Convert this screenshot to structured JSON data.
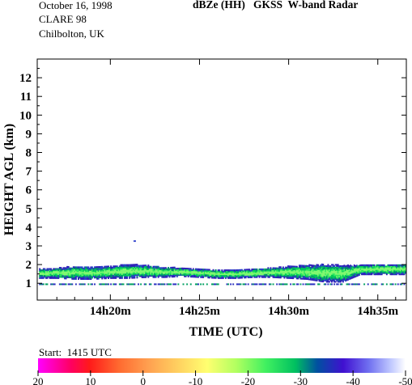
{
  "header": {
    "date": "October 16, 1998",
    "campaign": "CLARE 98",
    "location": "Chilbolton, UK",
    "title": "dBZe (HH)   GKSS  W-band Radar"
  },
  "colorbar": {
    "start_label": "Start:  1415 UTC",
    "ticks": [
      "20",
      "10",
      "0",
      "-10",
      "-20",
      "-30",
      "-40",
      "-50"
    ],
    "range": [
      20,
      -50
    ],
    "colors": [
      "#ff00ff",
      "#ff0040",
      "#ff7a2a",
      "#ffe060",
      "#80ff60",
      "#00e030",
      "#4020c0",
      "#ffffff"
    ]
  },
  "chart_data": {
    "type": "heatmap",
    "title": "dBZe (HH)   GKSS  W-band Radar",
    "xlabel": "TIME (UTC)",
    "ylabel": "HEIGHT AGL (km)",
    "x_range_minutes": [
      15.9,
      36.6
    ],
    "x_ticks": [
      {
        "value": 20,
        "label": "14h20m"
      },
      {
        "value": 25,
        "label": "14h25m"
      },
      {
        "value": 30,
        "label": "14h30m"
      },
      {
        "value": 35,
        "label": "14h35m"
      }
    ],
    "ylim": [
      0.1,
      13.0
    ],
    "y_ticks": [
      1,
      2,
      3,
      4,
      5,
      6,
      7,
      8,
      9,
      10,
      11,
      12
    ],
    "color_scale_dbz": [
      20,
      -50
    ],
    "cloud_layer": {
      "description_values": "Reflectivity band between about 1 and 2 km height",
      "base_km": [
        [
          16.0,
          1.25
        ],
        [
          17.0,
          1.25
        ],
        [
          18.0,
          1.2
        ],
        [
          19.0,
          1.2
        ],
        [
          20.0,
          1.25
        ],
        [
          21.0,
          1.25
        ],
        [
          22.0,
          1.3
        ],
        [
          23.0,
          1.3
        ],
        [
          24.0,
          1.35
        ],
        [
          25.0,
          1.3
        ],
        [
          26.0,
          1.25
        ],
        [
          27.0,
          1.25
        ],
        [
          28.0,
          1.3
        ],
        [
          29.0,
          1.3
        ],
        [
          30.0,
          1.25
        ],
        [
          31.0,
          1.2
        ],
        [
          32.0,
          1.05
        ],
        [
          33.0,
          1.05
        ],
        [
          34.0,
          1.45
        ],
        [
          35.0,
          1.45
        ],
        [
          36.0,
          1.45
        ],
        [
          36.5,
          1.45
        ]
      ],
      "top_km": [
        [
          16.0,
          1.75
        ],
        [
          17.0,
          1.8
        ],
        [
          18.0,
          1.9
        ],
        [
          19.0,
          1.85
        ],
        [
          20.0,
          1.9
        ],
        [
          21.0,
          2.0
        ],
        [
          22.0,
          1.95
        ],
        [
          23.0,
          1.85
        ],
        [
          24.0,
          1.8
        ],
        [
          25.0,
          1.75
        ],
        [
          26.0,
          1.7
        ],
        [
          27.0,
          1.7
        ],
        [
          28.0,
          1.75
        ],
        [
          29.0,
          1.8
        ],
        [
          30.0,
          1.9
        ],
        [
          31.0,
          1.95
        ],
        [
          32.0,
          2.0
        ],
        [
          33.0,
          1.95
        ],
        [
          34.0,
          1.95
        ],
        [
          35.0,
          2.0
        ],
        [
          36.0,
          2.0
        ],
        [
          36.5,
          2.0
        ]
      ],
      "peak_dbz": -25
    },
    "lower_echo_km": 0.95,
    "isolated_echo": {
      "x_min": 21.3,
      "y_km": 3.3
    }
  }
}
